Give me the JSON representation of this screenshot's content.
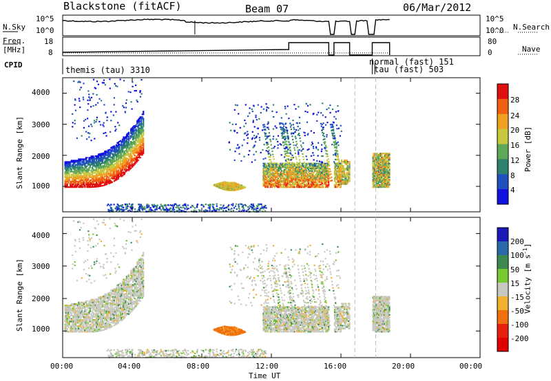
{
  "header": {
    "station": "Blackstone (fitACF)",
    "beam": "Beam 07",
    "date": "06/Mar/2012"
  },
  "strips": {
    "nsky_label": "N.Sky",
    "nsearch_label": "N.Search",
    "freq_label_line1": "Freq.",
    "freq_label_line2": "[MHz]",
    "nave_label": "Nave",
    "cpid_label": "CPID",
    "nsky_ticks": [
      "10^5",
      "10^0"
    ],
    "nsearch_ticks": [
      "10^5",
      "10^0"
    ],
    "freq_ticks": [
      "18",
      "8"
    ],
    "nave_ticks": [
      "80",
      "0"
    ],
    "cpid_entries": [
      {
        "text": "themis (tau) 3310",
        "start_hour": 0.0
      },
      {
        "text": "normal (fast) 151",
        "start_hour": 17.8
      },
      {
        "text": "tau (fast) 503",
        "start_hour": 17.95
      }
    ]
  },
  "chart_data": [
    {
      "type": "heatmap",
      "name": "power",
      "ylabel": "Slant Range [km]",
      "ylim": [
        180,
        4500
      ],
      "yticks": [
        "1000",
        "2000",
        "3000",
        "4000"
      ],
      "yticks_values": [
        1000,
        2000,
        3000,
        4000
      ],
      "colorbar_label": "Power [dB]",
      "colorbar_ticks": [
        "4",
        "8",
        "12",
        "16",
        "20",
        "24",
        "28"
      ],
      "colorbar_colors": [
        "#1010e0",
        "#2050c0",
        "#2e8070",
        "#60a858",
        "#c8c840",
        "#f0a020",
        "#f06010",
        "#e01010"
      ],
      "xlim_hours": [
        0,
        24
      ]
    },
    {
      "type": "heatmap",
      "name": "velocity",
      "ylabel": "Slant Range [km]",
      "ylim": [
        180,
        4500
      ],
      "yticks": [
        "1000",
        "2000",
        "3000",
        "4000"
      ],
      "yticks_values": [
        1000,
        2000,
        3000,
        4000
      ],
      "colorbar_label": "Velocity [m s",
      "colorbar_label_sup": "-1",
      "colorbar_label_end": "]",
      "colorbar_ticks": [
        "200",
        "100",
        "50",
        "15",
        "-15",
        "-50",
        "-100",
        "-200"
      ],
      "colorbar_colors": [
        "#1a1ab8",
        "#2a6aa8",
        "#3c8a50",
        "#78c830",
        "#c8c8c0",
        "#f0b030",
        "#f07010",
        "#e82010",
        "#e00000"
      ],
      "xlim_hours": [
        0,
        24
      ]
    }
  ],
  "time_axis": {
    "ticks": [
      "00:00",
      "04:00",
      "08:00",
      "12:00",
      "16:00",
      "20:00",
      "00:00"
    ],
    "title": "Time UT"
  }
}
